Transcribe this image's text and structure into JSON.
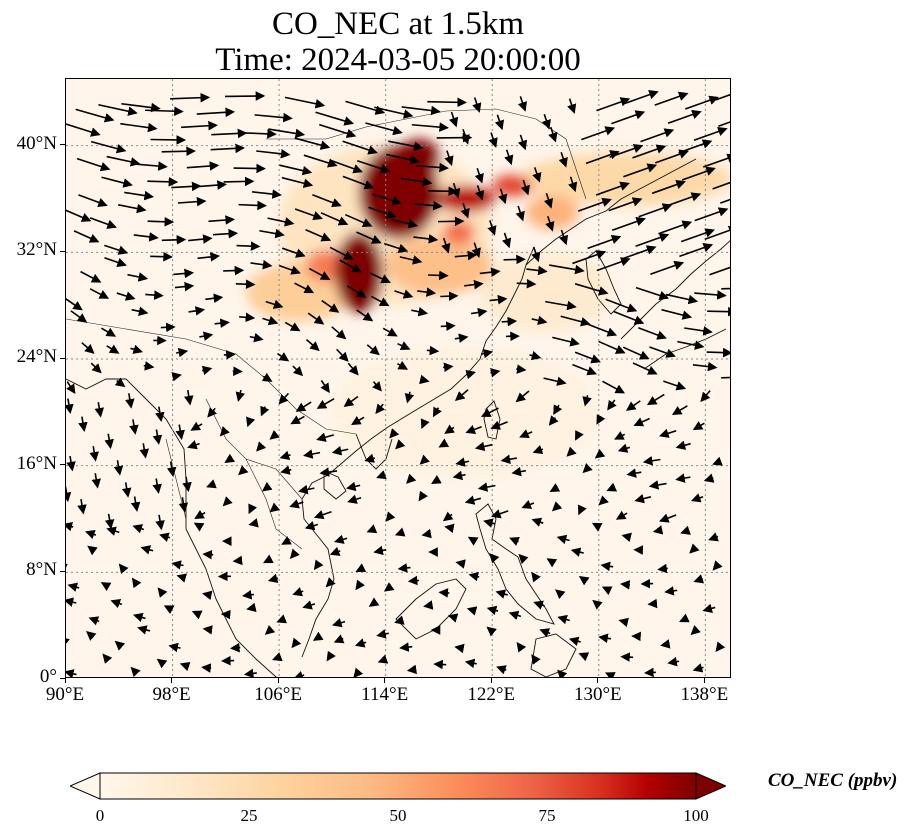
{
  "title": {
    "line1": "CO_NEC at 1.5km",
    "line2": "Time: 2024-03-05 20:00:00"
  },
  "map": {
    "projection": "PlateCarree",
    "extent": {
      "lon_min": 90,
      "lon_max": 140,
      "lat_min": 0,
      "lat_max": 45
    },
    "gridlines": true,
    "lon_ticks": [
      {
        "value": 90,
        "label": "90°E"
      },
      {
        "value": 98,
        "label": "98°E"
      },
      {
        "value": 106,
        "label": "106°E"
      },
      {
        "value": 114,
        "label": "114°E"
      },
      {
        "value": 122,
        "label": "122°E"
      },
      {
        "value": 130,
        "label": "130°E"
      },
      {
        "value": 138,
        "label": "138°E"
      }
    ],
    "lat_ticks": [
      {
        "value": 0,
        "label": "0°"
      },
      {
        "value": 8,
        "label": "8°N"
      },
      {
        "value": 16,
        "label": "16°N"
      },
      {
        "value": 24,
        "label": "24°N"
      },
      {
        "value": 32,
        "label": "32°N"
      },
      {
        "value": 40,
        "label": "40°N"
      }
    ],
    "field": {
      "colormap": "OrRd",
      "plumes": [
        {
          "lon": 115.0,
          "lat": 36.5,
          "rlon": 3.0,
          "rlat": 3.5,
          "value": 105
        },
        {
          "lon": 112.0,
          "lat": 30.5,
          "rlon": 1.8,
          "rlat": 3.0,
          "value": 100
        },
        {
          "lon": 116.5,
          "lat": 39.0,
          "rlon": 1.6,
          "rlat": 1.5,
          "value": 100
        },
        {
          "lon": 120.0,
          "lat": 36.0,
          "rlon": 2.2,
          "rlat": 1.0,
          "value": 85
        },
        {
          "lon": 123.5,
          "lat": 37.0,
          "rlon": 1.5,
          "rlat": 0.8,
          "value": 70
        },
        {
          "lon": 119.5,
          "lat": 33.5,
          "rlon": 1.2,
          "rlat": 0.9,
          "value": 60
        },
        {
          "lon": 109.5,
          "lat": 31.0,
          "rlon": 1.5,
          "rlat": 1.2,
          "value": 55
        },
        {
          "lon": 118.0,
          "lat": 31.0,
          "rlon": 4.0,
          "rlat": 2.2,
          "value": 35
        },
        {
          "lon": 107.5,
          "lat": 29.0,
          "rlon": 4.0,
          "rlat": 2.2,
          "value": 28
        },
        {
          "lon": 126.5,
          "lat": 35.0,
          "rlon": 2.0,
          "rlat": 1.3,
          "value": 40
        },
        {
          "lon": 132.0,
          "lat": 37.5,
          "rlon": 8.0,
          "rlat": 2.0,
          "value": 22
        },
        {
          "lon": 114.0,
          "lat": 34.0,
          "rlon": 8.0,
          "rlat": 6.0,
          "value": 15
        },
        {
          "lon": 126.0,
          "lat": 29.0,
          "rlon": 5.0,
          "rlat": 3.0,
          "value": 10
        },
        {
          "lon": 120.0,
          "lat": 20.0,
          "rlon": 10.0,
          "rlat": 5.0,
          "value": 4
        }
      ]
    },
    "wind_field": {
      "lon_range": [
        90.5,
        139.5
      ],
      "lat_range": [
        1,
        44
      ],
      "spacing_deg": 2.0
    }
  },
  "colorbar": {
    "label": "CO_NEC (ppbv)",
    "min": 0,
    "max": 100,
    "ticks": [
      {
        "value": 0,
        "label": "0"
      },
      {
        "value": 25,
        "label": "25"
      },
      {
        "value": 50,
        "label": "50"
      },
      {
        "value": 75,
        "label": "75"
      },
      {
        "value": 100,
        "label": "100"
      }
    ],
    "extend": "both"
  }
}
